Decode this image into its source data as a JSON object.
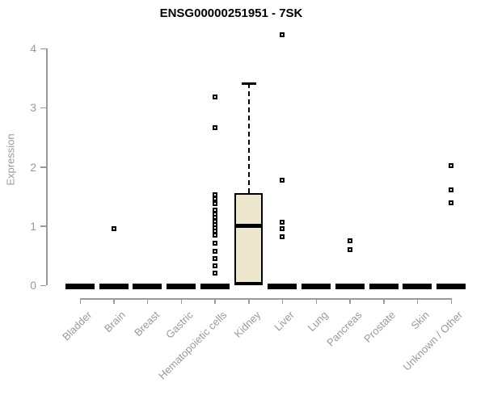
{
  "chart_data": {
    "type": "boxplot",
    "title": "ENSG00000251951 - 7SK",
    "ylabel": "Expression",
    "xlabel": "",
    "ylim": [
      0,
      4
    ],
    "yticks": [
      0,
      1,
      2,
      3,
      4
    ],
    "grid": false,
    "legend": "none",
    "categories": [
      "Bladder",
      "Brain",
      "Breast",
      "Gastric",
      "Hematopoietic cells",
      "Kidney",
      "Liver",
      "Lung",
      "Pancreas",
      "Prostate",
      "Skin",
      "Unknown / Other"
    ],
    "boxes": [
      {
        "category": "Bladder",
        "q1": 0,
        "median": 0,
        "q3": 0,
        "whisker_low": 0,
        "whisker_high": 0,
        "outliers": []
      },
      {
        "category": "Brain",
        "q1": 0,
        "median": 0,
        "q3": 0,
        "whisker_low": 0,
        "whisker_high": 0,
        "outliers": [
          0.96
        ]
      },
      {
        "category": "Breast",
        "q1": 0,
        "median": 0,
        "q3": 0,
        "whisker_low": 0,
        "whisker_high": 0,
        "outliers": []
      },
      {
        "category": "Gastric",
        "q1": 0,
        "median": 0,
        "q3": 0,
        "whisker_low": 0,
        "whisker_high": 0,
        "outliers": []
      },
      {
        "category": "Hematopoietic cells",
        "q1": 0,
        "median": 0,
        "q3": 0,
        "whisker_low": 0,
        "whisker_high": 0,
        "outliers": [
          3.18,
          2.66,
          1.53,
          1.46,
          1.38,
          1.27,
          1.2,
          1.14,
          1.08,
          1.02,
          0.97,
          0.91,
          0.85,
          0.71,
          0.57,
          0.45,
          0.33,
          0.2
        ]
      },
      {
        "category": "Kidney",
        "q1": 0,
        "median": 1.0,
        "q3": 1.55,
        "whisker_low": 0,
        "whisker_high": 3.41,
        "outliers": []
      },
      {
        "category": "Liver",
        "q1": 0,
        "median": 0,
        "q3": 0,
        "whisker_low": 0,
        "whisker_high": 0,
        "outliers": [
          4.23,
          1.77,
          1.06,
          0.96,
          0.82
        ]
      },
      {
        "category": "Lung",
        "q1": 0,
        "median": 0,
        "q3": 0,
        "whisker_low": 0,
        "whisker_high": 0,
        "outliers": []
      },
      {
        "category": "Pancreas",
        "q1": 0,
        "median": 0,
        "q3": 0,
        "whisker_low": 0,
        "whisker_high": 0,
        "outliers": [
          0.75,
          0.6
        ]
      },
      {
        "category": "Prostate",
        "q1": 0,
        "median": 0,
        "q3": 0,
        "whisker_low": 0,
        "whisker_high": 0,
        "outliers": []
      },
      {
        "category": "Skin",
        "q1": 0,
        "median": 0,
        "q3": 0,
        "whisker_low": 0,
        "whisker_high": 0,
        "outliers": []
      },
      {
        "category": "Unknown / Other",
        "q1": 0,
        "median": 0,
        "q3": 0,
        "whisker_low": 0,
        "whisker_high": 0,
        "outliers": [
          2.02,
          1.61,
          1.39
        ]
      }
    ],
    "colors": {
      "box_fill": "#EDE8CD",
      "box_border": "#000000",
      "median": "#000000",
      "zero_bar": "#000000",
      "axis": "#9a9a9a",
      "tick_text": "#999999",
      "title_text": "#000000",
      "background": "#ffffff"
    }
  }
}
